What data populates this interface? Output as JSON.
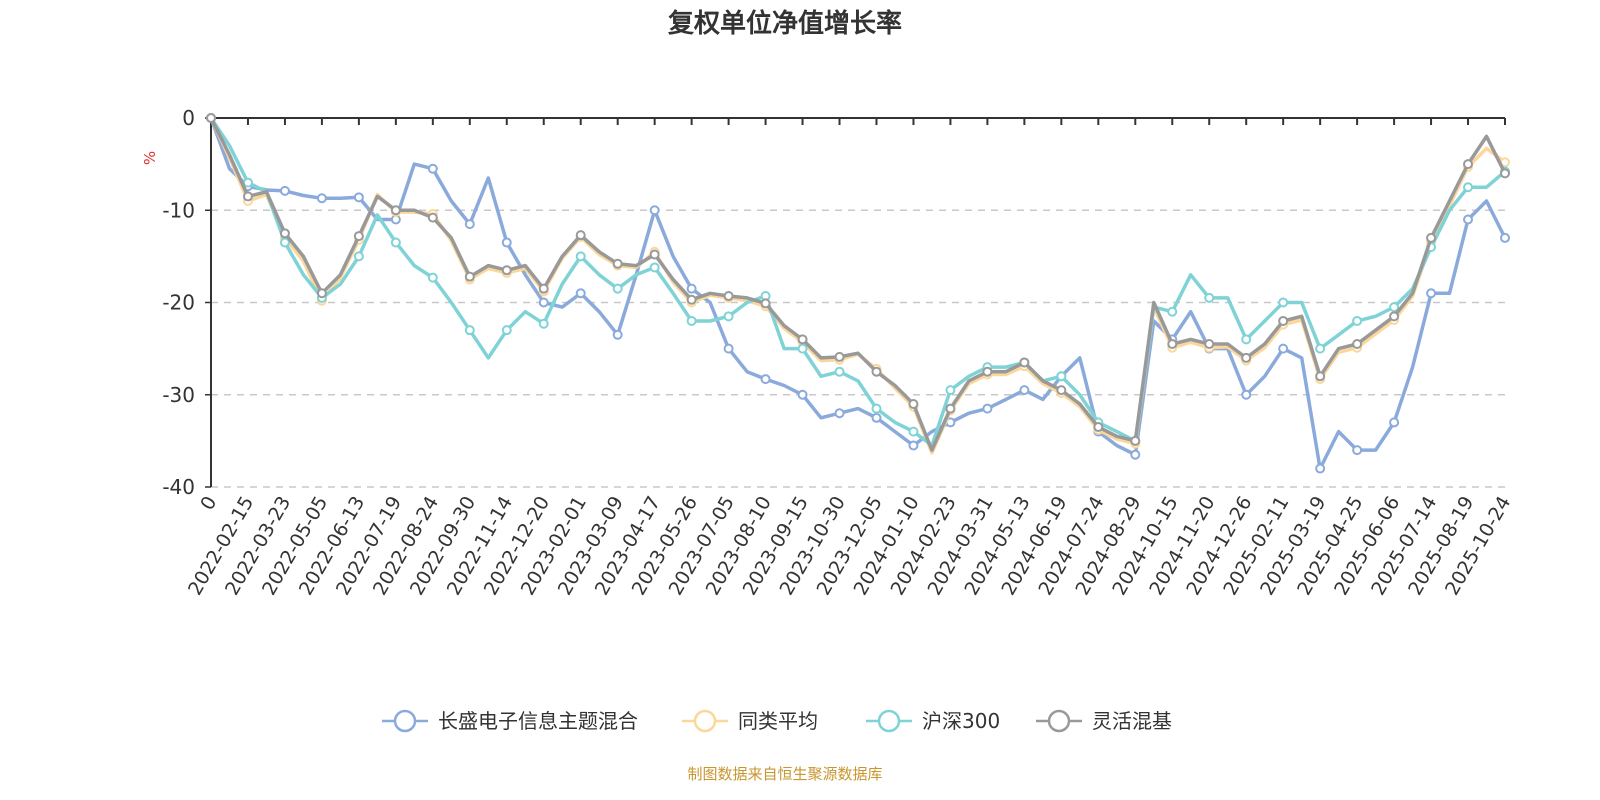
{
  "chart_data": {
    "type": "line",
    "title": "复权单位净值增长率",
    "ylabel": "%",
    "xlabel": "",
    "ylim": [
      -40,
      0
    ],
    "yticks": [
      0,
      -10,
      -20,
      -30,
      -40
    ],
    "grid": true,
    "legend_position": "bottom",
    "x_tick_labels": [
      "0",
      "2022-02-15",
      "2022-03-23",
      "2022-05-05",
      "2022-06-13",
      "2022-07-19",
      "2022-08-24",
      "2022-09-30",
      "2022-11-14",
      "2022-12-20",
      "2023-02-01",
      "2023-03-09",
      "2023-04-17",
      "2023-05-26",
      "2023-07-05",
      "2023-08-10",
      "2023-09-15",
      "2023-10-30",
      "2023-12-05",
      "2024-01-10",
      "2024-02-23",
      "2024-03-31",
      "2024-05-13",
      "2024-06-19",
      "2024-07-24",
      "2024-08-29",
      "2024-10-15",
      "2024-11-20",
      "2024-12-26",
      "2025-02-11",
      "2025-03-19",
      "2025-04-25",
      "2025-06-06",
      "2025-07-14",
      "2025-08-19",
      "2025-10-24"
    ],
    "x_note": "values sampled at every tick and half-way between ticks",
    "series": [
      {
        "name": "长盛电子信息主题混合",
        "color": "#8aaadc",
        "values": [
          0,
          -5.5,
          -7.4,
          -7.8,
          -7.9,
          -8.4,
          -8.7,
          -8.7,
          -8.6,
          -11,
          -11,
          -5,
          -5.5,
          -9,
          -11.5,
          -6.5,
          -13.5,
          -17,
          -20,
          -20.5,
          -19,
          -21,
          -23.5,
          -17,
          -10,
          -15,
          -18.5,
          -20,
          -25,
          -27.5,
          -28.3,
          -29,
          -30,
          -32.5,
          -32,
          -31.5,
          -32.5,
          -34,
          -35.5,
          -34,
          -33,
          -32,
          -31.5,
          -30.5,
          -29.5,
          -30.5,
          -28,
          -26,
          -34,
          -35.5,
          -36.5,
          -22,
          -24,
          -21,
          -25,
          -25,
          -30,
          -28,
          -25,
          -26,
          -38,
          -34,
          -36,
          -36,
          -33,
          -27,
          -19,
          -19,
          -11,
          -9,
          -13
        ]
      },
      {
        "name": "同类平均",
        "color": "#fcd79a",
        "values": [
          0,
          -4.3,
          -9,
          -8.3,
          -13,
          -15.5,
          -19.8,
          -17.3,
          -13.2,
          -8.3,
          -10.2,
          -10.2,
          -10.4,
          -13.3,
          -17.5,
          -16.3,
          -16.8,
          -16.3,
          -18.8,
          -15.2,
          -12.9,
          -14.8,
          -16,
          -16.2,
          -14.5,
          -17.8,
          -20,
          -19.2,
          -19.5,
          -19.8,
          -20.4,
          -22.8,
          -24.3,
          -26.3,
          -26.2,
          -25.6,
          -27.2,
          -29.3,
          -31.3,
          -36.3,
          -31.7,
          -28.8,
          -27.8,
          -27.8,
          -26.9,
          -28.8,
          -29.8,
          -31.3,
          -33.8,
          -34.8,
          -35.3,
          -20.5,
          -24.9,
          -24.3,
          -24.9,
          -24.8,
          -26.3,
          -24.9,
          -22.4,
          -21.9,
          -28.3,
          -25.4,
          -24.9,
          -23.4,
          -21.9,
          -19.3,
          -13.4,
          -9.5,
          -5.3,
          -3.3,
          -4.8
        ]
      },
      {
        "name": "沪深300",
        "color": "#7fd3d6",
        "values": [
          0,
          -3,
          -7,
          -8,
          -13.5,
          -17,
          -19.5,
          -18,
          -15,
          -10.5,
          -13.5,
          -16,
          -17.3,
          -20,
          -23,
          -26,
          -23,
          -21,
          -22.3,
          -18,
          -15,
          -17,
          -18.5,
          -17,
          -16.2,
          -19,
          -22,
          -22,
          -21.5,
          -20,
          -19.3,
          -25,
          -25,
          -28,
          -27.5,
          -28.5,
          -31.5,
          -33,
          -34,
          -35.5,
          -29.5,
          -28,
          -27,
          -27,
          -26.5,
          -28.5,
          -28,
          -30,
          -33,
          -34,
          -35,
          -20.5,
          -21,
          -17,
          -19.5,
          -19.5,
          -24,
          -22,
          -20,
          -20,
          -25,
          -23.5,
          -22,
          -21.5,
          -20.5,
          -18.5,
          -14,
          -10,
          -7.5,
          -7.5,
          -5.8
        ]
      },
      {
        "name": "灵活混基",
        "color": "#999999",
        "values": [
          0,
          -4,
          -8.5,
          -8,
          -12.5,
          -15,
          -19,
          -17,
          -12.8,
          -8.5,
          -10,
          -10,
          -10.8,
          -13,
          -17.2,
          -16,
          -16.5,
          -16,
          -18.5,
          -15,
          -12.7,
          -14.5,
          -15.8,
          -16,
          -14.8,
          -17.5,
          -19.7,
          -19,
          -19.3,
          -19.5,
          -20.1,
          -22.5,
          -24,
          -26,
          -25.9,
          -25.5,
          -27.5,
          -29,
          -31,
          -36,
          -31.5,
          -28.5,
          -27.5,
          -27.5,
          -26.5,
          -28.5,
          -29.5,
          -31,
          -33.5,
          -34.5,
          -35,
          -20,
          -24.5,
          -24,
          -24.5,
          -24.5,
          -26,
          -24.5,
          -22,
          -21.5,
          -28,
          -25,
          -24.5,
          -23,
          -21.5,
          -19,
          -13,
          -9,
          -5,
          -2,
          -6
        ]
      }
    ]
  },
  "footer": "制图数据来自恒生聚源数据库"
}
